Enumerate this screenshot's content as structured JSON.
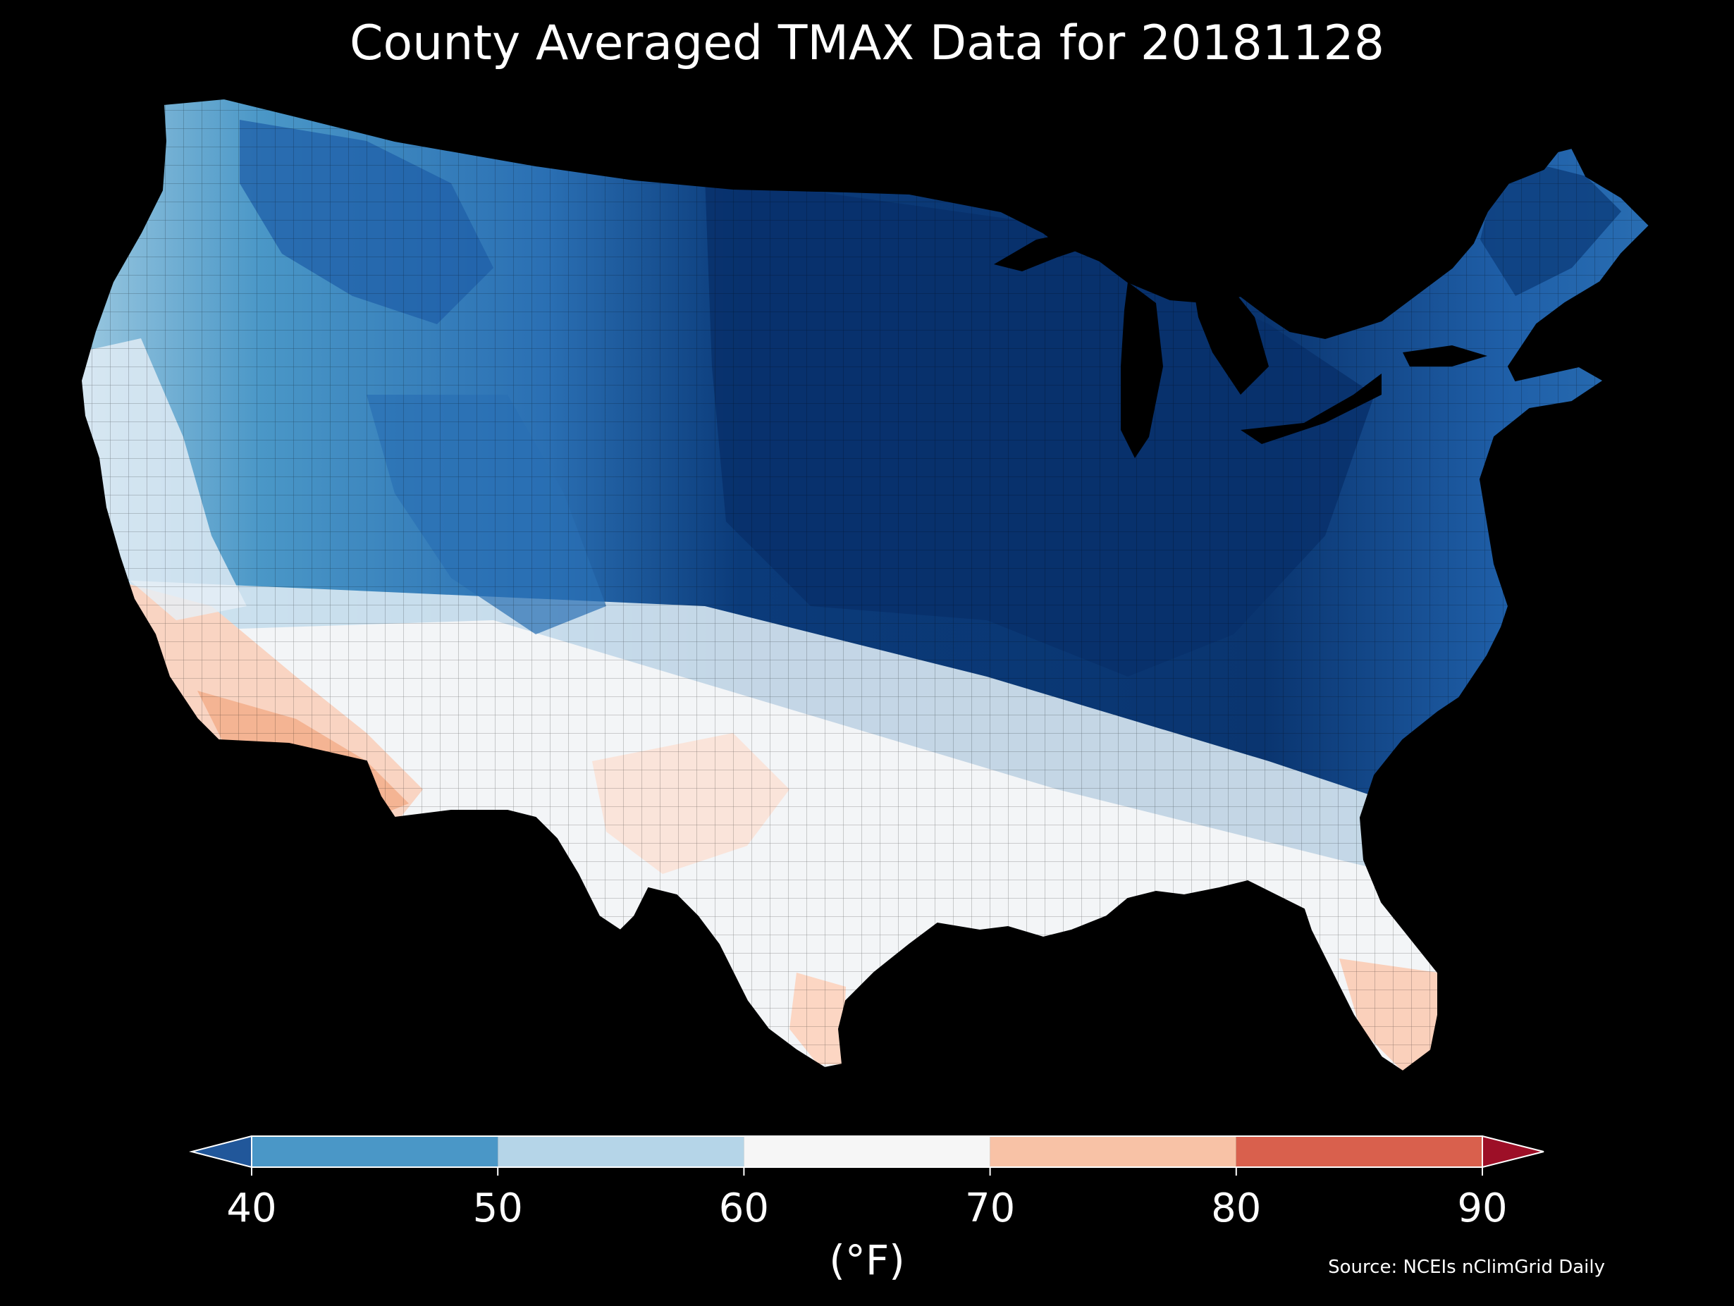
{
  "title": "County Averaged TMAX Data for 20181128",
  "source": "Source: NCEIs nClimGrid Daily",
  "colorbar": {
    "label": "(°F)",
    "ticks": [
      "40",
      "50",
      "60",
      "70",
      "80",
      "90"
    ],
    "segments": [
      {
        "from": 40,
        "to": 50,
        "color": "#4a97c7"
      },
      {
        "from": 50,
        "to": 60,
        "color": "#b5d5e8"
      },
      {
        "from": 60,
        "to": 70,
        "color": "#f6f6f6"
      },
      {
        "from": 70,
        "to": 80,
        "color": "#f8c2a6"
      },
      {
        "from": 80,
        "to": 90,
        "color": "#d9604d"
      }
    ],
    "under_color": "#21579a",
    "over_color": "#9d0f27"
  },
  "legend_colors": {
    "very_cold": "#08306b",
    "cold": "#1f5fa8",
    "cool": "#4a97c7",
    "mild_cool": "#b5d5e8",
    "neutral": "#f6f6f6",
    "warm": "#f8c2a6",
    "hot": "#d9604d"
  }
}
